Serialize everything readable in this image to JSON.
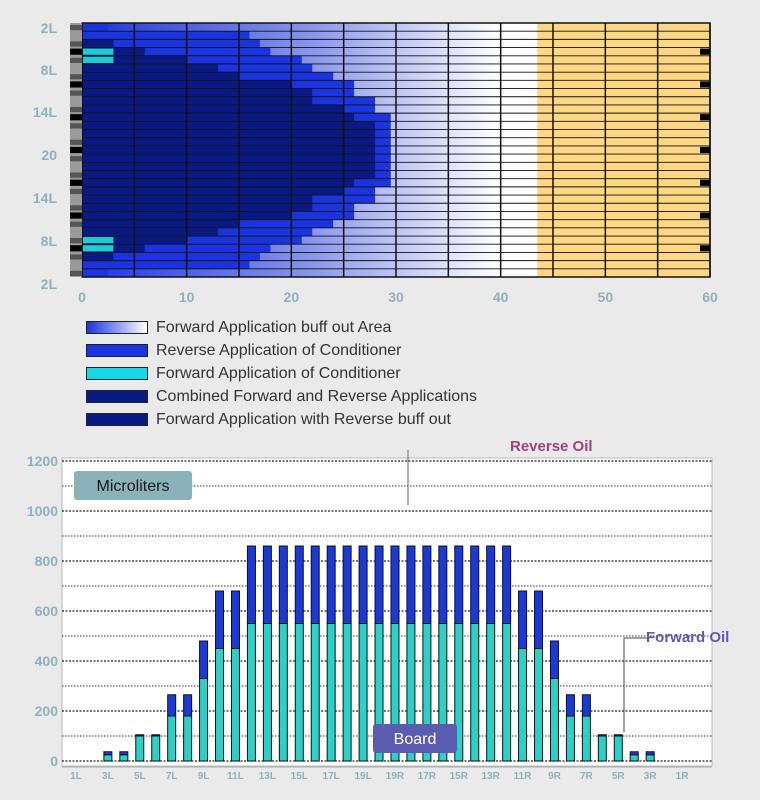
{
  "colors": {
    "background": "#eaeaea",
    "tan": "#fdd783",
    "white_area": "#ffffff",
    "dark_navy": "#0a1a85",
    "reverse_blue": "#1a34e0",
    "cyan": "#1ecece",
    "teal_bar": "#29d1c9",
    "blue_bar": "#1a3ad8",
    "axis_text": "#8fb0bd",
    "reverse_oil": "#a0437c",
    "forward_oil": "#6058b6",
    "board_bg": "#5b5bb0",
    "micro_bg": "#8ab2b8"
  },
  "heatmap": {
    "chart_data": {
      "type": "heatmap",
      "x_ticks": [
        "0",
        "10",
        "20",
        "30",
        "40",
        "50",
        "60"
      ],
      "xlim": [
        0,
        60
      ],
      "y_ticks": [
        "2L",
        "8L",
        "14L",
        "20",
        "14L",
        "8L",
        "2L"
      ]
    }
  },
  "legend": {
    "items": [
      {
        "label": "Forward Application buff out Area",
        "swatch": "gradient"
      },
      {
        "label": "Reverse Application of Conditioner",
        "swatch": "#1a34e0"
      },
      {
        "label": "Forward Application of Conditioner",
        "swatch": "#18d8e6"
      },
      {
        "label": "Combined Forward and Reverse Applications",
        "swatch": "#0a1a85"
      },
      {
        "label": "Forward Application with Reverse buff out",
        "swatch": "#0a1a85"
      }
    ]
  },
  "bar_chart": {
    "microliters_label": "Microliters",
    "reverse_oil_label": "Reverse Oil",
    "forward_oil_label": "Forward Oil",
    "board_label": "Board",
    "chart_data": {
      "type": "bar",
      "stacked": true,
      "ylim": [
        0,
        1200
      ],
      "y_ticks": [
        0,
        200,
        400,
        600,
        800,
        1000,
        1200
      ],
      "x_tick_labels": [
        "1L",
        "3L",
        "5L",
        "7L",
        "9L",
        "11L",
        "13L",
        "15L",
        "17L",
        "19L",
        "19R",
        "17R",
        "15R",
        "13R",
        "11R",
        "9R",
        "7R",
        "5R",
        "3R",
        "1R"
      ],
      "series": [
        {
          "name": "Forward Oil",
          "values": [
            0,
            0,
            25,
            25,
            100,
            100,
            180,
            180,
            330,
            450,
            450,
            550,
            550,
            550,
            550,
            550,
            550,
            550,
            550,
            550,
            550,
            550,
            550,
            550,
            550,
            550,
            550,
            550,
            450,
            450,
            330,
            180,
            180,
            100,
            100,
            25,
            25,
            0,
            0,
            0
          ]
        },
        {
          "name": "Reverse Oil",
          "values": [
            0,
            0,
            12,
            12,
            5,
            5,
            85,
            85,
            150,
            230,
            230,
            310,
            310,
            310,
            310,
            310,
            310,
            310,
            310,
            310,
            310,
            310,
            310,
            310,
            310,
            310,
            310,
            310,
            230,
            230,
            150,
            85,
            85,
            5,
            5,
            12,
            12,
            0,
            0,
            0
          ]
        }
      ]
    }
  }
}
